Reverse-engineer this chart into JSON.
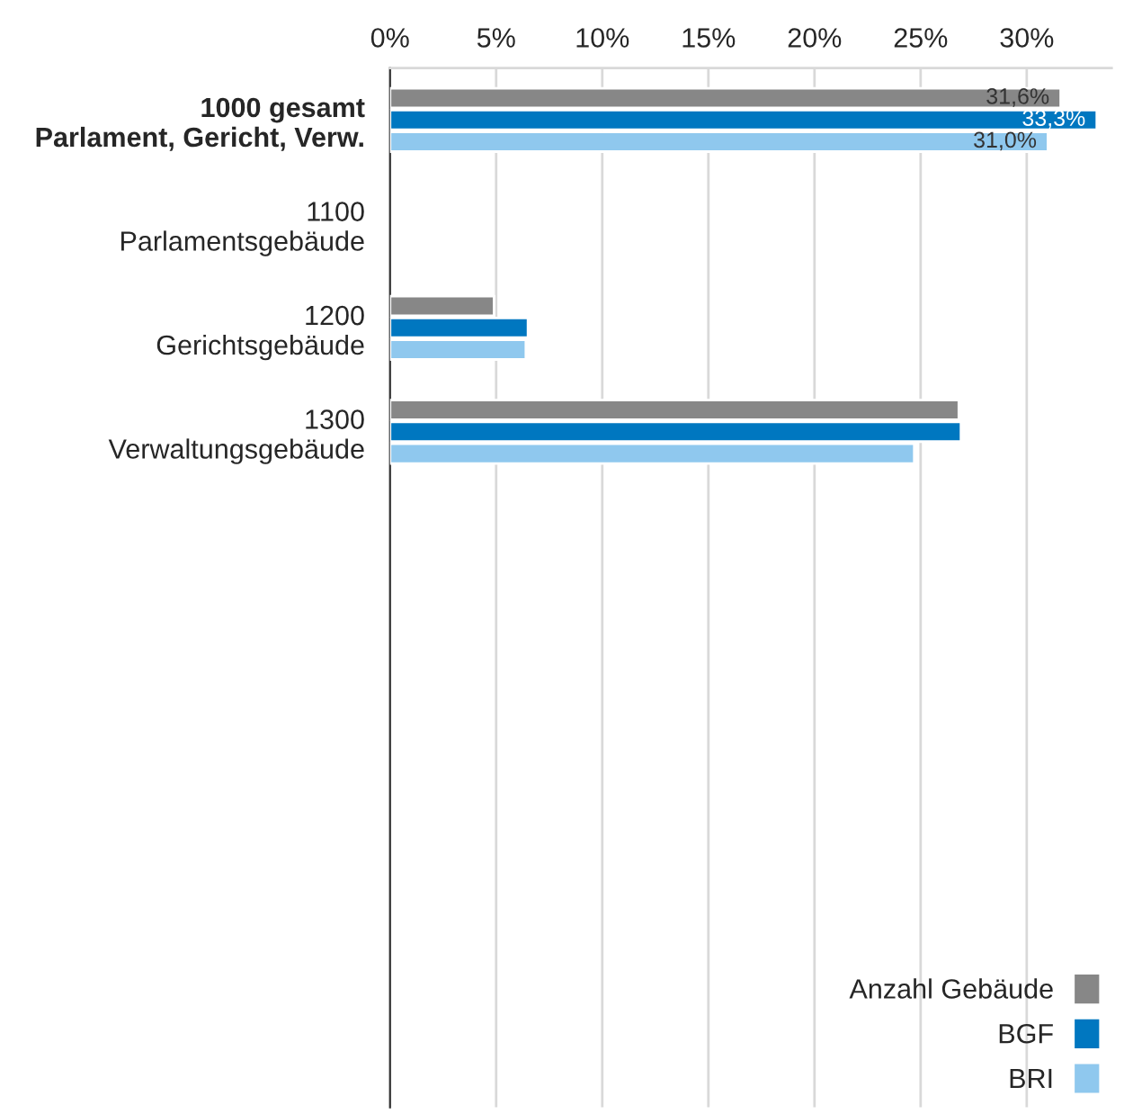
{
  "chart_data": {
    "type": "bar",
    "orientation": "horizontal",
    "categories": [
      "1000 gesamt\nParlament, Gericht, Verw.",
      "1100\nParlamentsgebäude",
      "1200\nGerichtsgebäude",
      "1300\nVerwaltungsgebäude"
    ],
    "series": [
      {
        "name": "Anzahl Gebäude",
        "color": "#878787",
        "values": [
          31.6,
          null,
          4.9,
          26.8
        ],
        "value_labels": [
          "31,6%",
          null,
          null,
          null
        ]
      },
      {
        "name": "BGF",
        "color": "#0077c0",
        "values": [
          33.3,
          null,
          6.5,
          26.9
        ],
        "value_labels": [
          "33,3%",
          null,
          null,
          null
        ]
      },
      {
        "name": "BRI",
        "color": "#8fc8ee",
        "values": [
          31.0,
          null,
          6.4,
          24.7
        ],
        "value_labels": [
          "31,0%",
          null,
          null,
          null
        ]
      }
    ],
    "xlim": [
      0,
      34
    ],
    "xticks": [
      {
        "value": 0,
        "label": "0%"
      },
      {
        "value": 5,
        "label": "5%"
      },
      {
        "value": 10,
        "label": "10%"
      },
      {
        "value": 15,
        "label": "15%"
      },
      {
        "value": 20,
        "label": "20%"
      },
      {
        "value": 25,
        "label": "25%"
      },
      {
        "value": 30,
        "label": "30%"
      }
    ],
    "grid": "x",
    "legend": "bottom right"
  }
}
